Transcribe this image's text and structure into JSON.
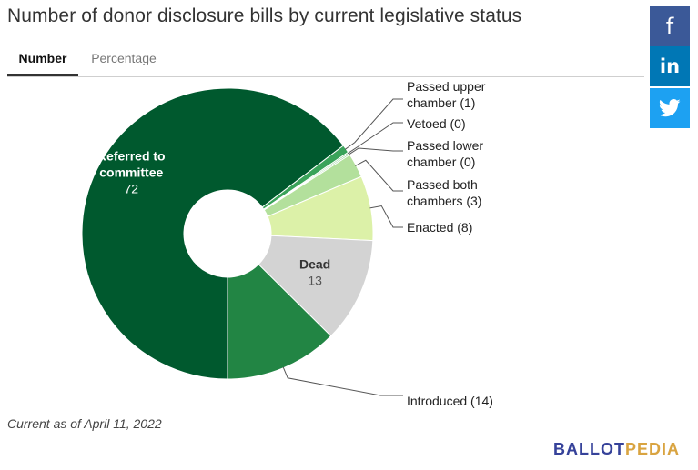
{
  "title": "Number of donor disclosure bills by current legislative status",
  "tabs": [
    {
      "label": "Number",
      "active": true
    },
    {
      "label": "Percentage",
      "active": false
    }
  ],
  "social": [
    {
      "icon": "facebook-icon",
      "glyph": "f",
      "color": "#3b5998"
    },
    {
      "icon": "linkedin-icon",
      "glyph": "in",
      "color": "#0077b5"
    },
    {
      "icon": "twitter-icon",
      "glyph": "",
      "color": "#1da1f2"
    }
  ],
  "chart_data": {
    "type": "pie",
    "title": "Number of donor disclosure bills by current legislative status",
    "slices": [
      {
        "label": "Referred to committee",
        "value": 72,
        "color": "#00592e"
      },
      {
        "label": "Passed upper chamber",
        "value": 1,
        "color": "#3aa35a"
      },
      {
        "label": "Vetoed",
        "value": 0,
        "color": "#77c47e"
      },
      {
        "label": "Passed lower chamber",
        "value": 0,
        "color": "#92cf8d"
      },
      {
        "label": "Passed both chambers",
        "value": 3,
        "color": "#b3e09c"
      },
      {
        "label": "Enacted",
        "value": 8,
        "color": "#dcf1a8"
      },
      {
        "label": "Dead",
        "value": 13,
        "color": "#d3d3d3"
      },
      {
        "label": "Introduced",
        "value": 14,
        "color": "#228544"
      }
    ],
    "inner_labels": [
      {
        "lines": [
          "Referred to",
          "committee"
        ],
        "value": "72"
      },
      {
        "lines": [
          "Dead"
        ],
        "value": "13"
      }
    ],
    "outer_labels": [
      {
        "lines": [
          "Passed upper",
          "chamber (1)"
        ]
      },
      {
        "lines": [
          "Vetoed (0)"
        ]
      },
      {
        "lines": [
          "Passed lower",
          "chamber (0)"
        ]
      },
      {
        "lines": [
          "Passed both",
          "chambers (3)"
        ]
      },
      {
        "lines": [
          "Enacted (8)"
        ]
      },
      {
        "lines": [
          "Introduced (14)"
        ]
      }
    ]
  },
  "footnote": "Current as of April 11, 2022",
  "logo": {
    "part1": "BALLOT",
    "part2": "PEDIA",
    "color1": "#36429a",
    "color2": "#d9a441"
  }
}
